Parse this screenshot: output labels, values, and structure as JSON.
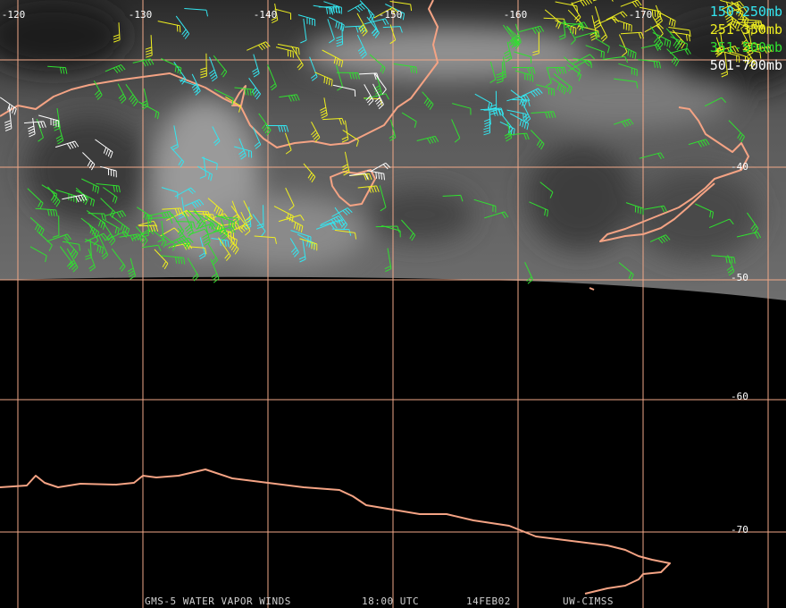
{
  "map": {
    "longitude_labels": [
      "-120",
      "-130",
      "-140",
      "-150",
      "-160",
      "-170"
    ],
    "latitude_labels": [
      "-40",
      "-50",
      "-60",
      "-70"
    ],
    "legend": [
      {
        "label": "150-250mb",
        "color": "#33e6f0"
      },
      {
        "label": "251-350mb",
        "color": "#f0f020"
      },
      {
        "label": "351-500mb",
        "color": "#30e030"
      },
      {
        "label": "501-700mb",
        "color": "#ffffff"
      }
    ],
    "footer": [
      "GMS-5 WATER VAPOR WINDS",
      "18:00 UTC",
      "14FEB02",
      "UW-CIMSS"
    ]
  }
}
